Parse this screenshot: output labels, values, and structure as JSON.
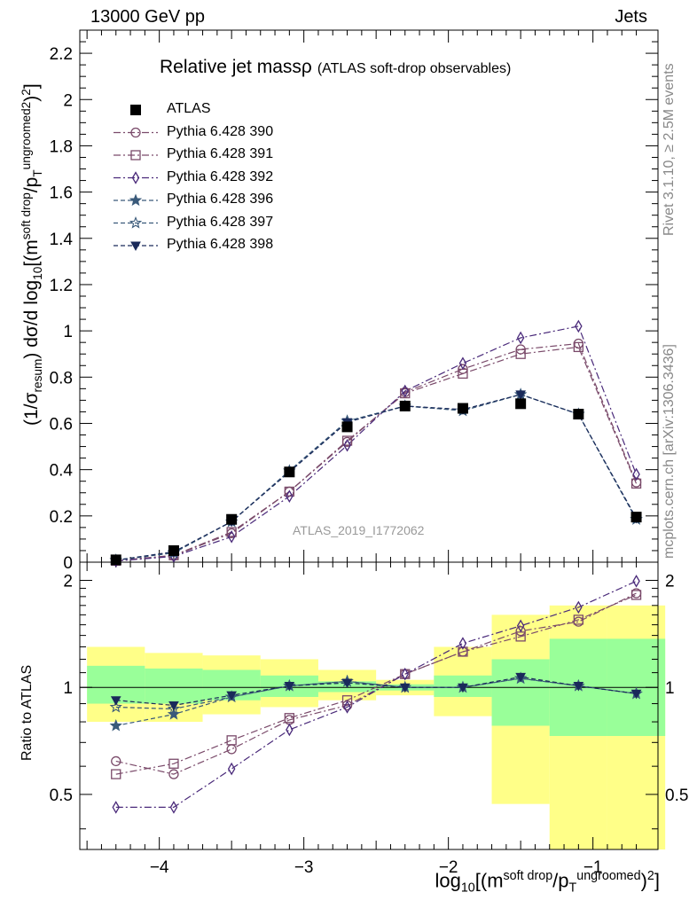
{
  "header": {
    "left": "13000 GeV pp",
    "right": "Jets"
  },
  "side_labels": {
    "rivet": "Rivet 3.1.10, ≥ 2.5M events",
    "mcplots": "mcplots.cern.ch [arXiv:1306.3436]"
  },
  "title": {
    "main": "Relative jet massρ",
    "sub": "(ATLAS soft-drop observables)"
  },
  "analysis_label": "ATLAS_2019_I1772062",
  "ylabel_main": {
    "a": "(1/σ",
    "b": "resum",
    "c": ") dσ/d log",
    "d": "10",
    "e": "[(m",
    "f": "soft drop",
    "g": "/p",
    "h": "T",
    "i": "ungroomed",
    "j": "2",
    "k": ")",
    "l": "2",
    "m": "]"
  },
  "ylabel_ratio": "Ratio to ATLAS",
  "xlabel": {
    "a": "log",
    "b": "10",
    "c": "[(m",
    "d": "soft drop",
    "e": "/p",
    "f": "T",
    "g": "ungroomed",
    "h": ")",
    "i": "2",
    "j": "]"
  },
  "colors": {
    "atlas": "#000000",
    "p390": "#7a4a6a",
    "p391": "#7a4a6a",
    "p392": "#4a2a7a",
    "p396": "#3a5a7a",
    "p397": "#3a5a7a",
    "p398": "#1a2a5a",
    "band_inner": "#99ff99",
    "band_outer": "#ffff88"
  },
  "chart_data": {
    "type": "line",
    "main": {
      "xlim": [
        -4.55,
        -0.55
      ],
      "ylim": [
        0,
        2.3
      ],
      "yticks": [
        0,
        0.2,
        0.4,
        0.6,
        0.8,
        1,
        1.2,
        1.4,
        1.6,
        1.8,
        2,
        2.2
      ],
      "ytick_labels": [
        "0",
        "0.2",
        "0.4",
        "0.6",
        "0.8",
        "1",
        "1.2",
        "1.4",
        "1.6",
        "1.8",
        "2",
        "2.2"
      ]
    },
    "ratio": {
      "ylim": [
        0.35,
        2.25
      ],
      "yticks": [
        0.5,
        1,
        2
      ],
      "ytick_labels": [
        "0.5",
        "1",
        "2"
      ]
    },
    "xticks": [
      -4,
      -3,
      -2,
      -1
    ],
    "xtick_labels": [
      "−4",
      "−3",
      "−2",
      "−1"
    ],
    "bin_edges": [
      -4.5,
      -4.1,
      -3.7,
      -3.3,
      -2.9,
      -2.5,
      -2.1,
      -1.7,
      -1.3,
      -0.9,
      -0.5
    ],
    "x": [
      -4.3,
      -3.9,
      -3.5,
      -3.1,
      -2.7,
      -2.3,
      -1.9,
      -1.5,
      -1.1,
      -0.7
    ],
    "atlas": {
      "name": "ATLAS",
      "values": [
        0.01,
        0.05,
        0.185,
        0.39,
        0.585,
        0.675,
        0.665,
        0.685,
        0.64,
        0.195
      ]
    },
    "band_inner": [
      [
        0.9,
        1.15
      ],
      [
        0.9,
        1.13
      ],
      [
        0.92,
        1.12
      ],
      [
        0.94,
        1.08
      ],
      [
        0.97,
        1.04
      ],
      [
        0.98,
        1.02
      ],
      [
        0.94,
        1.08
      ],
      [
        0.78,
        1.2
      ],
      [
        0.73,
        1.37
      ],
      [
        0.73,
        1.37
      ]
    ],
    "band_outer": [
      [
        0.8,
        1.3
      ],
      [
        0.8,
        1.25
      ],
      [
        0.84,
        1.23
      ],
      [
        0.88,
        1.2
      ],
      [
        0.92,
        1.12
      ],
      [
        0.95,
        1.05
      ],
      [
        0.83,
        1.3
      ],
      [
        0.47,
        1.6
      ],
      [
        0.35,
        1.7
      ],
      [
        0.35,
        1.7
      ]
    ],
    "series": [
      {
        "name": "Pythia 6.428 390",
        "key": "p390",
        "marker": "circle",
        "dash": "8,3,2,3",
        "values": [
          0.006,
          0.028,
          0.125,
          0.305,
          0.52,
          0.735,
          0.835,
          0.92,
          0.945,
          0.345
        ],
        "ratio": [
          0.62,
          0.57,
          0.67,
          0.81,
          0.89,
          1.09,
          1.26,
          1.44,
          1.53,
          1.84
        ]
      },
      {
        "name": "Pythia 6.428 391",
        "key": "p391",
        "marker": "square",
        "dash": "8,3,2,3",
        "values": [
          0.006,
          0.03,
          0.13,
          0.305,
          0.525,
          0.73,
          0.815,
          0.9,
          0.93,
          0.34
        ],
        "ratio": [
          0.57,
          0.61,
          0.71,
          0.82,
          0.92,
          1.09,
          1.26,
          1.39,
          1.55,
          1.82
        ]
      },
      {
        "name": "Pythia 6.428 392",
        "key": "p392",
        "marker": "diamond",
        "dash": "8,3,2,3",
        "values": [
          0.005,
          0.025,
          0.11,
          0.285,
          0.505,
          0.74,
          0.86,
          0.97,
          1.02,
          0.38
        ],
        "ratio": [
          0.46,
          0.46,
          0.59,
          0.76,
          0.88,
          1.09,
          1.33,
          1.49,
          1.68,
          1.99
        ]
      },
      {
        "name": "Pythia 6.428 396",
        "key": "p396",
        "marker": "star",
        "dash": "5,3",
        "values": [
          0.008,
          0.04,
          0.175,
          0.395,
          0.61,
          0.675,
          0.655,
          0.725,
          0.64,
          0.185
        ],
        "ratio": [
          0.78,
          0.84,
          0.94,
          1.01,
          1.04,
          1.0,
          1.0,
          1.06,
          1.01,
          0.96
        ]
      },
      {
        "name": "Pythia 6.428 397",
        "key": "p397",
        "marker": "star-open",
        "dash": "5,3",
        "values": [
          0.009,
          0.043,
          0.175,
          0.395,
          0.61,
          0.675,
          0.655,
          0.725,
          0.64,
          0.185
        ],
        "ratio": [
          0.88,
          0.87,
          0.94,
          1.01,
          1.04,
          1.0,
          1.0,
          1.06,
          1.01,
          0.96
        ]
      },
      {
        "name": "Pythia 6.428 398",
        "key": "p398",
        "marker": "triangle-down",
        "dash": "5,3",
        "values": [
          0.009,
          0.045,
          0.175,
          0.39,
          0.605,
          0.675,
          0.66,
          0.725,
          0.64,
          0.19
        ],
        "ratio": [
          0.92,
          0.89,
          0.95,
          1.01,
          1.03,
          1.0,
          1.0,
          1.07,
          1.01,
          0.96
        ]
      }
    ]
  }
}
